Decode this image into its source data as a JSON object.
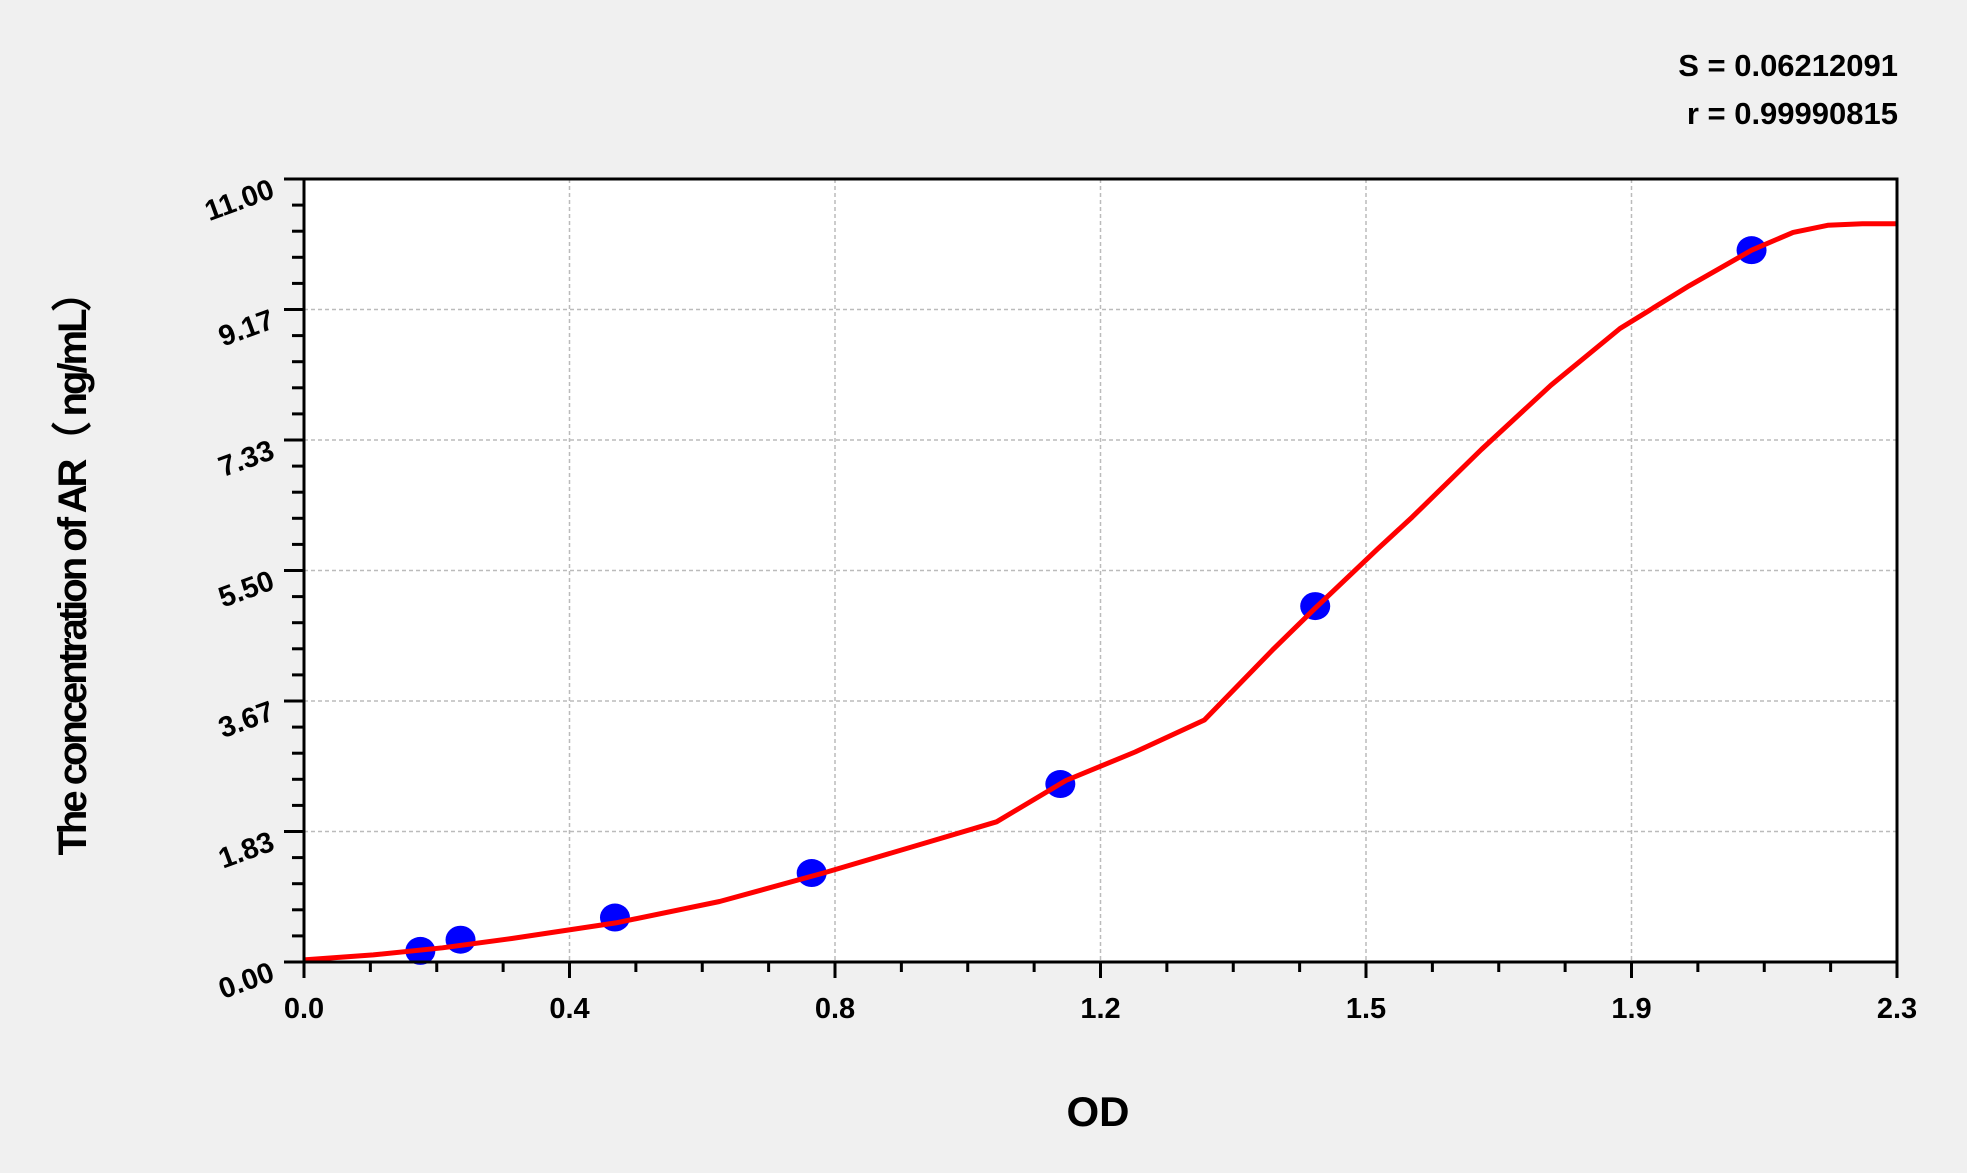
{
  "chart_data": {
    "type": "scatter",
    "xlabel": "OD",
    "ylabel": "The concentration of AR（ ng/mL）",
    "xlim": [
      0,
      2.3
    ],
    "ylim": [
      0,
      11
    ],
    "x_tick_labels": [
      "0.0",
      "0.4",
      "0.8",
      "1.2",
      "1.5",
      "1.9",
      "2.3"
    ],
    "y_tick_labels": [
      "0.00",
      "1.83",
      "3.67",
      "5.50",
      "7.33",
      "9.17",
      "11.00"
    ],
    "grid": true,
    "annotations": [
      "S = 0.06212091",
      "r = 0.99990815"
    ],
    "points": {
      "color": "#0000ff",
      "x": [
        0.168,
        0.226,
        0.449,
        0.733,
        1.092,
        1.46,
        2.09
      ],
      "y": [
        0.156,
        0.313,
        0.625,
        1.25,
        2.5,
        5.0,
        10.0
      ]
    },
    "fit_curve": {
      "color": "#ff0000",
      "x": [
        0,
        0.1,
        0.2,
        0.3,
        0.45,
        0.6,
        0.75,
        0.9,
        1.0,
        1.1,
        1.2,
        1.3,
        1.4,
        1.46,
        1.55,
        1.6,
        1.7,
        1.8,
        1.9,
        2.0,
        2.09,
        2.15,
        2.2,
        2.25,
        2.3
      ],
      "y": [
        0.03,
        0.1,
        0.2,
        0.33,
        0.55,
        0.85,
        1.25,
        1.68,
        1.97,
        2.55,
        2.95,
        3.4,
        4.4,
        4.97,
        5.8,
        6.25,
        7.2,
        8.1,
        8.9,
        9.5,
        10.0,
        10.25,
        10.35,
        10.37,
        10.37
      ]
    }
  }
}
